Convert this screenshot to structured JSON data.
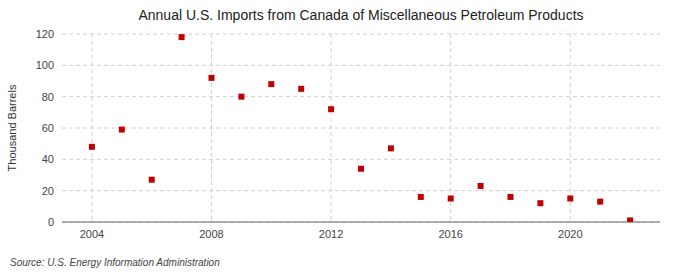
{
  "chart_data": {
    "type": "scatter",
    "title": "Annual U.S. Imports from Canada of Miscellaneous Petroleum Products",
    "ylabel": "Thousand Barrels",
    "annotation": "Source: U.S. Energy Information Administration",
    "x": [
      2004,
      2005,
      2006,
      2007,
      2008,
      2009,
      2010,
      2011,
      2012,
      2013,
      2014,
      2015,
      2016,
      2017,
      2018,
      2019,
      2020,
      2021,
      2022
    ],
    "values": [
      48,
      59,
      27,
      118,
      92,
      80,
      88,
      85,
      72,
      34,
      47,
      16,
      15,
      23,
      16,
      12,
      15,
      13,
      1
    ],
    "color": "#c00000",
    "marker": "square",
    "xlim": [
      2003.0,
      2023.0
    ],
    "ylim": [
      0,
      120
    ],
    "xticks": [
      2004,
      2008,
      2012,
      2016,
      2020
    ],
    "yticks": [
      0,
      20,
      40,
      60,
      80,
      100,
      120
    ],
    "grid": true
  }
}
